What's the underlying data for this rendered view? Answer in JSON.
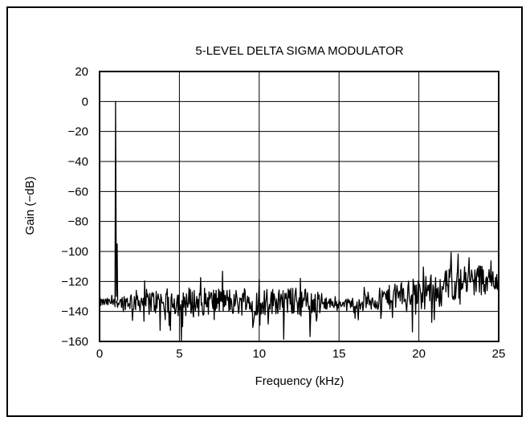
{
  "chart_data": {
    "type": "line",
    "title": "5-LEVEL DELTA SIGMA MODULATOR",
    "xlabel": "Frequency (kHz)",
    "ylabel": "Gain (−dB)",
    "xlim": [
      0,
      25
    ],
    "ylim": [
      -160,
      20
    ],
    "xticks": [
      0,
      5,
      10,
      15,
      20,
      25
    ],
    "yticks": [
      20,
      0,
      -20,
      -40,
      -60,
      -80,
      -100,
      -120,
      -140,
      -160
    ],
    "ytick_labels": [
      "20",
      "0",
      "−20",
      "−40",
      "−60",
      "−80",
      "−100",
      "−120",
      "−140",
      "−160"
    ],
    "grid": true,
    "line_color": "#000000",
    "series": [
      {
        "name": "",
        "tone": {
          "x": 1.0,
          "y": 0
        },
        "tone_shoulder": {
          "x": 1.1,
          "y": -95
        },
        "noise_floor": [
          [
            0,
            -134
          ],
          [
            1,
            -134
          ],
          [
            2,
            -133
          ],
          [
            3,
            -133
          ],
          [
            4,
            -134
          ],
          [
            5,
            -133
          ],
          [
            6,
            -134
          ],
          [
            7,
            -133
          ],
          [
            8,
            -133
          ],
          [
            9,
            -134
          ],
          [
            10,
            -134
          ],
          [
            11,
            -133
          ],
          [
            12,
            -133
          ],
          [
            13,
            -134
          ],
          [
            14,
            -134
          ],
          [
            15,
            -135
          ],
          [
            16,
            -134
          ],
          [
            17,
            -133
          ],
          [
            18,
            -131
          ],
          [
            19,
            -129
          ],
          [
            20,
            -127
          ],
          [
            21,
            -124
          ],
          [
            22,
            -122
          ],
          [
            23,
            -120
          ],
          [
            24,
            -118
          ],
          [
            25,
            -116
          ]
        ],
        "noise_amplitude": [
          [
            0,
            3
          ],
          [
            1,
            3
          ],
          [
            2,
            7
          ],
          [
            3,
            8
          ],
          [
            4,
            9
          ],
          [
            5,
            10
          ],
          [
            6,
            10
          ],
          [
            7,
            9
          ],
          [
            8,
            9
          ],
          [
            9,
            9
          ],
          [
            10,
            9
          ],
          [
            11,
            9
          ],
          [
            12,
            9
          ],
          [
            13,
            10
          ],
          [
            14,
            6
          ],
          [
            15,
            2
          ],
          [
            16,
            4
          ],
          [
            17,
            7
          ],
          [
            18,
            8
          ],
          [
            19,
            9
          ],
          [
            20,
            10
          ],
          [
            21,
            10
          ],
          [
            22,
            11
          ],
          [
            23,
            11
          ],
          [
            24,
            11
          ],
          [
            25,
            11
          ]
        ]
      }
    ]
  }
}
